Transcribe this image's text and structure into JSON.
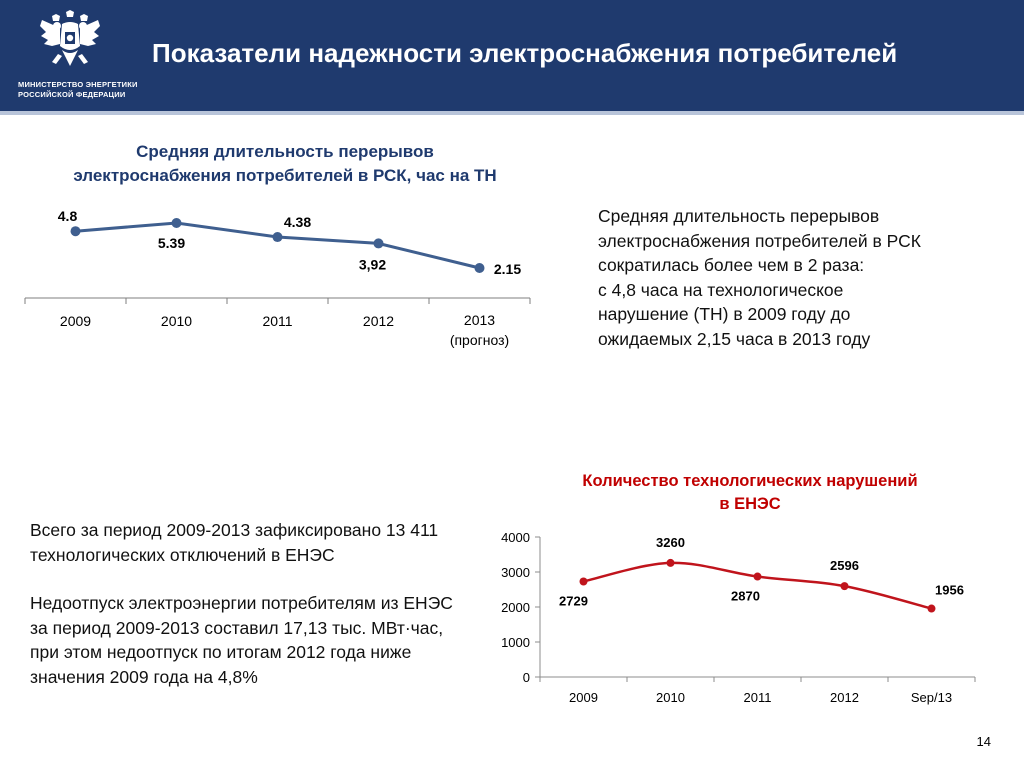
{
  "header": {
    "title": "Показатели надежности электроснабжения потребителей",
    "ministry_line1": "МИНИСТЕРСТВО ЭНЕРГЕТИКИ",
    "ministry_line2": "РОССИЙСКОЙ ФЕДЕРАЦИИ",
    "emblem_icon": "double-headed-eagle-icon",
    "bg_color": "#1f3a6e"
  },
  "left_text": {
    "paragraph1": "Всего за период 2009-2013 зафиксировано 13 411 технологических отключений в ЕНЭС",
    "paragraph2": "Недоотпуск электроэнергии потребителям из ЕНЭС за период 2009-2013 составил 17,13 тыс. МВт·час, при этом недоотпуск по итогам 2012 года ниже значения 2009 года на 4,8%"
  },
  "right_text": {
    "line1": "Средняя длительность перерывов",
    "line2": "электроснабжения потребителей в РСК",
    "line3": "сократилась более чем в 2 раза:",
    "line4": "с 4,8 часа на технологическое",
    "line5": "нарушение (ТН) в 2009 году до",
    "line6": "ожидаемых 2,15 часа в 2013 году"
  },
  "page_number": "14",
  "chart_data": [
    {
      "type": "line",
      "title_line1": "Средняя длительность перерывов",
      "title_line2": "электроснабжения потребителей в РСК, час на ТН",
      "title_color": "#1f3a6e",
      "line_color": "#3f5f8f",
      "categories": [
        "2009",
        "2010",
        "2011",
        "2012",
        "2013"
      ],
      "category_sublabels": [
        "",
        "",
        "",
        "",
        "(прогноз)"
      ],
      "values": [
        4.8,
        5.39,
        4.38,
        3.92,
        2.15
      ],
      "data_labels": [
        "4.8",
        "5.39",
        "4.38",
        "3,92",
        "2.15"
      ],
      "y_axis_visible": false
    },
    {
      "type": "line",
      "title_line1": "Количество технологических нарушений",
      "title_line2": "в ЕНЭС",
      "title_color": "#c00000",
      "line_color": "#c0141c",
      "categories": [
        "2009",
        "2010",
        "2011",
        "2012",
        "Sep/13"
      ],
      "values": [
        2729,
        3260,
        2870,
        2596,
        1956
      ],
      "data_labels": [
        "2729",
        "3260",
        "2870",
        "2596",
        "1956"
      ],
      "ylim": [
        0,
        4000
      ],
      "yticks": [
        "0",
        "1000",
        "2000",
        "3000",
        "4000"
      ],
      "smooth": true
    }
  ]
}
